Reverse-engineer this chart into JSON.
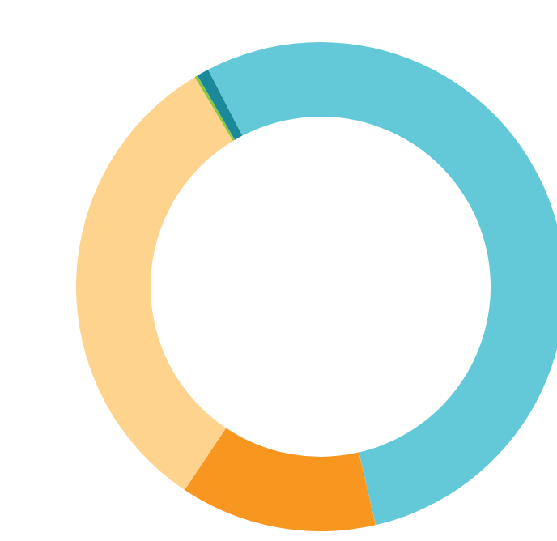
{
  "chart_data": {
    "type": "donut",
    "categories": [
      null,
      null,
      null,
      null,
      null
    ],
    "values": [
      54,
      13,
      32,
      0.2,
      0.8
    ],
    "colors": [
      "#63c9d9",
      "#f7971f",
      "#fdd38d",
      "#8dc63f",
      "#1a8a9a"
    ]
  }
}
